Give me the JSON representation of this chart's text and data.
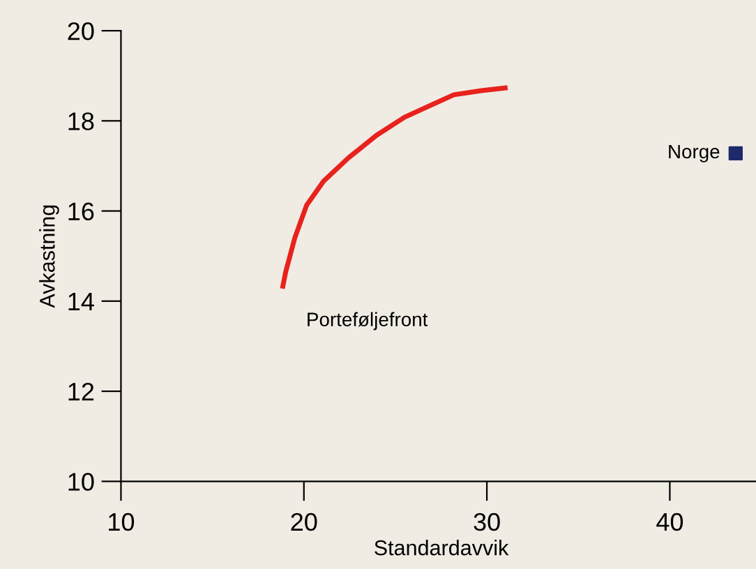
{
  "chart_data": {
    "type": "line",
    "xlabel": "Standardavvik",
    "ylabel": "Avkastning",
    "xlim": [
      10,
      45
    ],
    "xticks": [
      10,
      20,
      30,
      40
    ],
    "ylim": [
      10,
      20
    ],
    "yticks": [
      10,
      12,
      14,
      16,
      18,
      20
    ],
    "grid": false,
    "marker": "none",
    "series": [
      {
        "name": "Porteføljefront",
        "color": "#e8221c",
        "x": [
          18.85,
          19.0,
          19.5,
          20.15,
          21.07,
          22.44,
          23.97,
          25.5,
          27.0,
          28.2,
          29.7,
          31.0
        ],
        "values": [
          14.33,
          14.64,
          15.4,
          16.13,
          16.66,
          17.18,
          17.68,
          18.08,
          18.36,
          18.58,
          18.67,
          18.73
        ]
      },
      {
        "name": "Norge",
        "type": "scatter",
        "marker": "square",
        "color": "#1f2a6b",
        "x": [
          43.6
        ],
        "values": [
          17.28
        ]
      }
    ]
  }
}
